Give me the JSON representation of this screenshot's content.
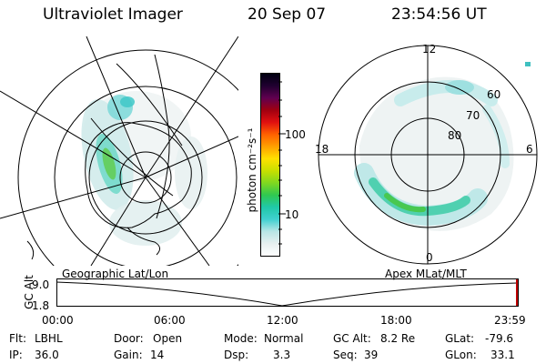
{
  "header": {
    "instrument": "Ultraviolet Imager",
    "date": "20 Sep 07",
    "time": "23:54:56 UT"
  },
  "colorbar": {
    "unit_label": "photon cm⁻²s⁻¹",
    "tick_labels": [
      "100",
      "10"
    ],
    "colors": [
      "#ffffff",
      "#e6f0f0",
      "#b8e6e6",
      "#40d0d0",
      "#20c8a8",
      "#30c850",
      "#80d820",
      "#c8e000",
      "#ffe000",
      "#ffa000",
      "#ff6000",
      "#e01010",
      "#a00010",
      "#600050",
      "#200030",
      "#000010"
    ]
  },
  "left_map": {
    "caption": "Geographic Lat/Lon"
  },
  "right_map": {
    "caption": "Apex MLat/MLT",
    "mlt_labels": {
      "top": "12",
      "left": "18",
      "right": "6",
      "bottom": "0"
    },
    "mlat_labels": [
      "60",
      "70",
      "80"
    ]
  },
  "alt_plot": {
    "ylabel": "GC Alt",
    "ytick_labels": [
      "9.0",
      "1.8"
    ],
    "xtick_labels": [
      "00:00",
      "06:00",
      "12:00",
      "18:00",
      "23:59"
    ]
  },
  "status": {
    "row1": [
      {
        "label": "Flt:",
        "value": "LBHL"
      },
      {
        "label": "Door:",
        "value": "Open"
      },
      {
        "label": "Mode:",
        "value": "Normal"
      },
      {
        "label": "GC Alt:",
        "value": "8.2 Re"
      },
      {
        "label": "GLat:",
        "value": "-79.6"
      }
    ],
    "row2": [
      {
        "label": "IP:",
        "value": "36.0"
      },
      {
        "label": "Gain:",
        "value": "14"
      },
      {
        "label": "Dsp:",
        "value": "3.3"
      },
      {
        "label": "Seq:",
        "value": "39"
      },
      {
        "label": "GLon:",
        "value": "33.1"
      }
    ]
  }
}
